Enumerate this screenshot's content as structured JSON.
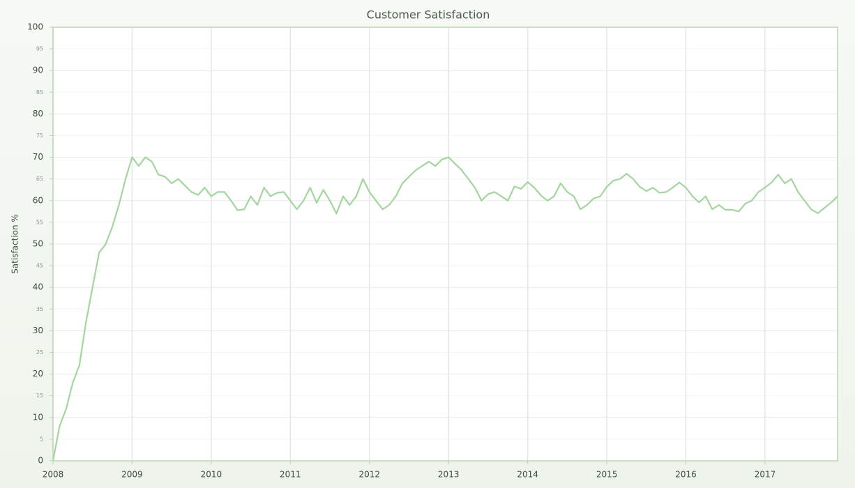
{
  "chart_data": {
    "type": "line",
    "title": "Customer Satisfaction",
    "y_label": "Satisfaction %",
    "color": "#a3d69e",
    "grid": true,
    "xlim": [
      2008,
      2017.917
    ],
    "xticks": [
      2008,
      2009,
      2010,
      2011,
      2012,
      2013,
      2014,
      2015,
      2016,
      2017
    ],
    "ylim": [
      0,
      100
    ],
    "yticks": [
      0,
      5,
      10,
      15,
      20,
      25,
      30,
      35,
      40,
      45,
      50,
      55,
      60,
      65,
      70,
      75,
      80,
      85,
      90,
      95,
      100
    ],
    "x": [
      2008,
      2008.083,
      2008.167,
      2008.25,
      2008.333,
      2008.417,
      2008.5,
      2008.583,
      2008.667,
      2008.75,
      2008.833,
      2008.917,
      2009,
      2009.083,
      2009.167,
      2009.25,
      2009.333,
      2009.417,
      2009.5,
      2009.583,
      2009.667,
      2009.75,
      2009.833,
      2009.917,
      2010,
      2010.083,
      2010.167,
      2010.25,
      2010.333,
      2010.417,
      2010.5,
      2010.583,
      2010.667,
      2010.75,
      2010.833,
      2010.917,
      2011,
      2011.083,
      2011.167,
      2011.25,
      2011.333,
      2011.417,
      2011.5,
      2011.583,
      2011.667,
      2011.75,
      2011.833,
      2011.917,
      2012,
      2012.083,
      2012.167,
      2012.25,
      2012.333,
      2012.417,
      2012.5,
      2012.583,
      2012.667,
      2012.75,
      2012.833,
      2012.917,
      2013,
      2013.083,
      2013.167,
      2013.25,
      2013.333,
      2013.417,
      2013.5,
      2013.583,
      2013.667,
      2013.75,
      2013.833,
      2013.917,
      2014,
      2014.083,
      2014.167,
      2014.25,
      2014.333,
      2014.417,
      2014.5,
      2014.583,
      2014.667,
      2014.75,
      2014.833,
      2014.917,
      2015,
      2015.083,
      2015.167,
      2015.25,
      2015.333,
      2015.417,
      2015.5,
      2015.583,
      2015.667,
      2015.75,
      2015.833,
      2015.917,
      2016,
      2016.083,
      2016.167,
      2016.25,
      2016.333,
      2016.417,
      2016.5,
      2016.583,
      2016.667,
      2016.75,
      2016.833,
      2016.917,
      2017,
      2017.083,
      2017.167,
      2017.25,
      2017.333,
      2017.417,
      2017.5,
      2017.583,
      2017.667,
      2017.75,
      2017.833,
      2017.917
    ],
    "values": [
      0,
      8,
      12,
      18,
      22,
      32,
      40,
      48,
      50,
      54,
      59,
      65,
      70,
      68,
      70,
      69,
      66,
      65.5,
      64,
      65,
      63.5,
      62,
      61.3,
      63,
      61,
      62,
      62,
      60,
      57.8,
      58,
      61,
      59,
      63,
      61,
      61.8,
      62,
      60,
      58,
      60,
      63,
      59.5,
      62.5,
      60,
      57,
      61,
      59,
      61,
      65,
      62,
      60,
      58,
      59,
      61,
      64,
      65.5,
      67,
      68,
      69,
      68,
      69.5,
      70,
      68.5,
      67,
      65,
      63,
      60,
      61.5,
      62,
      61,
      60,
      63.3,
      62.7,
      64.3,
      63,
      61.2,
      60,
      61,
      64,
      62,
      61,
      58,
      59,
      60.5,
      61,
      63.2,
      64.6,
      65,
      66.2,
      65,
      63.2,
      62.2,
      63,
      61.8,
      62,
      63,
      64.2,
      63,
      61,
      59.6,
      61,
      58,
      59,
      57.9,
      57.9,
      57.5,
      59.3,
      60,
      62,
      63,
      64.2,
      66,
      64,
      65,
      62,
      60,
      58,
      57.1,
      58.3,
      59.5,
      61
    ]
  }
}
